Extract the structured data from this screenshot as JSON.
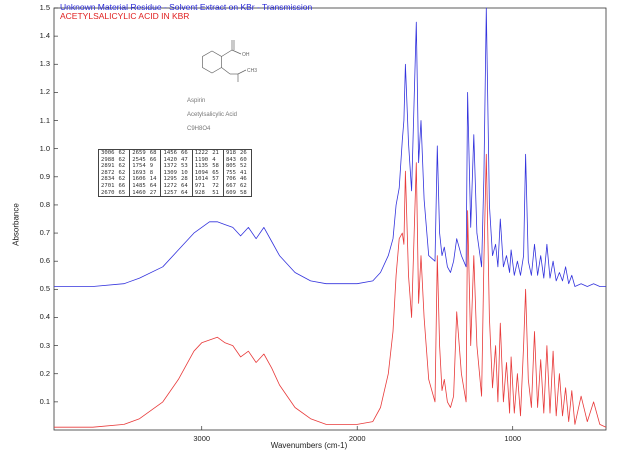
{
  "chart_data": {
    "type": "line",
    "xlabel": "Wavenumbers (cm-1)",
    "ylabel": "Absorbance",
    "xlim": [
      3950,
      400
    ],
    "ylim": [
      0,
      1.5
    ],
    "x_reversed": true,
    "xticks": [
      3000,
      2000,
      1000
    ],
    "yticks": [
      0.1,
      0.2,
      0.3,
      0.4,
      0.5,
      0.6,
      0.7,
      0.8,
      0.9,
      1.0,
      1.1,
      1.2,
      1.3,
      1.4,
      1.5
    ],
    "series": [
      {
        "name": "Unknown Material Residue - Solvent Extract on KBr - Transmission",
        "color": "#3333dd",
        "x": [
          3950,
          3700,
          3500,
          3400,
          3250,
          3150,
          3050,
          3000,
          2950,
          2900,
          2850,
          2800,
          2750,
          2700,
          2650,
          2600,
          2550,
          2500,
          2400,
          2300,
          2200,
          2100,
          2000,
          1900,
          1850,
          1800,
          1770,
          1750,
          1730,
          1710,
          1700,
          1690,
          1670,
          1650,
          1620,
          1605,
          1590,
          1570,
          1540,
          1500,
          1485,
          1470,
          1455,
          1440,
          1420,
          1400,
          1380,
          1360,
          1330,
          1300,
          1290,
          1270,
          1250,
          1230,
          1200,
          1185,
          1170,
          1150,
          1130,
          1110,
          1095,
          1080,
          1060,
          1040,
          1020,
          1010,
          990,
          970,
          950,
          930,
          917,
          900,
          880,
          860,
          840,
          820,
          800,
          780,
          760,
          740,
          720,
          700,
          680,
          660,
          640,
          620,
          600,
          560,
          520,
          480,
          440,
          400
        ],
        "y": [
          0.51,
          0.51,
          0.52,
          0.54,
          0.58,
          0.64,
          0.7,
          0.72,
          0.74,
          0.74,
          0.73,
          0.72,
          0.69,
          0.72,
          0.68,
          0.72,
          0.67,
          0.62,
          0.56,
          0.53,
          0.52,
          0.52,
          0.52,
          0.53,
          0.56,
          0.62,
          0.68,
          0.8,
          0.86,
          1.03,
          1.1,
          1.3,
          1.02,
          0.85,
          1.45,
          0.95,
          1.1,
          0.82,
          0.62,
          0.6,
          1.01,
          0.7,
          0.62,
          0.65,
          0.58,
          0.56,
          0.6,
          0.68,
          0.62,
          0.58,
          1.2,
          0.72,
          1.05,
          0.7,
          0.58,
          0.9,
          1.5,
          0.8,
          0.62,
          0.66,
          0.58,
          0.75,
          0.58,
          0.62,
          0.56,
          0.64,
          0.55,
          0.6,
          0.55,
          0.62,
          0.98,
          0.6,
          0.55,
          0.66,
          0.55,
          0.62,
          0.54,
          0.66,
          0.54,
          0.6,
          0.53,
          0.56,
          0.53,
          0.58,
          0.52,
          0.55,
          0.51,
          0.52,
          0.51,
          0.52,
          0.51,
          0.51
        ]
      },
      {
        "name": "ACETYLSALICYLIC ACID IN KBR",
        "color": "#e83a3a",
        "x": [
          3950,
          3700,
          3500,
          3400,
          3250,
          3150,
          3050,
          3000,
          2950,
          2900,
          2850,
          2800,
          2750,
          2700,
          2650,
          2600,
          2550,
          2500,
          2400,
          2300,
          2200,
          2100,
          2000,
          1900,
          1850,
          1800,
          1770,
          1750,
          1730,
          1710,
          1700,
          1690,
          1670,
          1650,
          1620,
          1605,
          1590,
          1570,
          1540,
          1500,
          1485,
          1470,
          1455,
          1440,
          1420,
          1400,
          1380,
          1360,
          1330,
          1300,
          1290,
          1270,
          1250,
          1230,
          1200,
          1185,
          1170,
          1150,
          1130,
          1110,
          1095,
          1080,
          1060,
          1040,
          1020,
          1010,
          990,
          970,
          950,
          930,
          917,
          900,
          880,
          860,
          840,
          820,
          800,
          780,
          760,
          740,
          720,
          700,
          680,
          660,
          640,
          620,
          600,
          560,
          520,
          480,
          440,
          400
        ],
        "y": [
          0.01,
          0.01,
          0.02,
          0.04,
          0.1,
          0.18,
          0.28,
          0.31,
          0.32,
          0.33,
          0.31,
          0.3,
          0.26,
          0.28,
          0.24,
          0.27,
          0.22,
          0.16,
          0.08,
          0.04,
          0.02,
          0.02,
          0.02,
          0.03,
          0.08,
          0.2,
          0.35,
          0.55,
          0.68,
          0.7,
          0.66,
          0.92,
          0.55,
          0.4,
          0.95,
          0.45,
          0.62,
          0.4,
          0.18,
          0.1,
          0.62,
          0.3,
          0.14,
          0.18,
          0.1,
          0.08,
          0.12,
          0.42,
          0.2,
          0.1,
          0.78,
          0.3,
          0.62,
          0.3,
          0.12,
          0.6,
          0.98,
          0.4,
          0.15,
          0.3,
          0.1,
          0.38,
          0.1,
          0.24,
          0.06,
          0.26,
          0.06,
          0.2,
          0.05,
          0.3,
          0.5,
          0.18,
          0.08,
          0.35,
          0.08,
          0.25,
          0.06,
          0.3,
          0.06,
          0.28,
          0.05,
          0.2,
          0.05,
          0.15,
          0.03,
          0.14,
          0.02,
          0.12,
          0.03,
          0.1,
          0.02,
          0.01
        ]
      }
    ],
    "compound": {
      "name": "Aspirin",
      "synonym": "Acetylsalicylic Acid",
      "formula": "C9H8O4",
      "cooh_label": "OH",
      "ch3_label": "CH3"
    },
    "peak_table": [
      [
        "3006",
        "62",
        "2659",
        "68",
        "1456",
        "66",
        "1222",
        "21",
        "918",
        "26"
      ],
      [
        "2988",
        "62",
        "2545",
        "66",
        "1420",
        "47",
        "1190",
        "4",
        "843",
        "60"
      ],
      [
        "2891",
        "62",
        "1754",
        "9",
        "1372",
        "53",
        "1135",
        "58",
        "805",
        "52"
      ],
      [
        "2872",
        "62",
        "1693",
        "8",
        "1309",
        "10",
        "1094",
        "65",
        "755",
        "41"
      ],
      [
        "2834",
        "62",
        "1606",
        "14",
        "1295",
        "28",
        "1014",
        "57",
        "706",
        "46"
      ],
      [
        "2701",
        "66",
        "1485",
        "64",
        "1272",
        "64",
        "971",
        "72",
        "667",
        "62"
      ],
      [
        "2670",
        "65",
        "1460",
        "27",
        "1257",
        "64",
        "928",
        "51",
        "609",
        "58"
      ]
    ]
  }
}
